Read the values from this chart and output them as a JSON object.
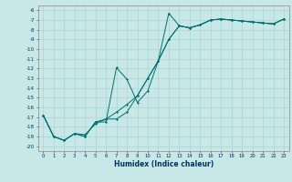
{
  "xlabel": "Humidex (Indice chaleur)",
  "xlim": [
    -0.5,
    23.5
  ],
  "ylim": [
    -20.5,
    -5.5
  ],
  "yticks": [
    -20,
    -19,
    -18,
    -17,
    -16,
    -15,
    -14,
    -13,
    -12,
    -11,
    -10,
    -9,
    -8,
    -7,
    -6
  ],
  "xticks": [
    0,
    1,
    2,
    3,
    4,
    5,
    6,
    7,
    8,
    9,
    10,
    11,
    12,
    13,
    14,
    15,
    16,
    17,
    18,
    19,
    20,
    21,
    22,
    23
  ],
  "bg_color": "#c8e8e8",
  "line_color": "#007070",
  "grid_color": "#b0d8d8",
  "line1_x": [
    0,
    1,
    2,
    3,
    4,
    5,
    6,
    7,
    8,
    9,
    10,
    11,
    12,
    13,
    14,
    15,
    16,
    17,
    18,
    19,
    20,
    21,
    22,
    23
  ],
  "line1_y": [
    -16.8,
    -19.0,
    -19.4,
    -18.7,
    -19.0,
    -17.5,
    -17.5,
    -11.9,
    -13.1,
    -15.5,
    -14.3,
    -11.2,
    -6.3,
    -7.6,
    -7.8,
    -7.5,
    -7.0,
    -6.9,
    -7.0,
    -7.1,
    -7.2,
    -7.3,
    -7.4,
    -6.9
  ],
  "line2_x": [
    0,
    1,
    2,
    3,
    4,
    5,
    6,
    7,
    8,
    9,
    10,
    11,
    12,
    13,
    14,
    15,
    16,
    17,
    18,
    19,
    20,
    21,
    22,
    23
  ],
  "line2_y": [
    -16.8,
    -19.0,
    -19.4,
    -18.7,
    -19.0,
    -17.5,
    -17.2,
    -17.2,
    -16.5,
    -14.8,
    -13.0,
    -11.2,
    -9.0,
    -7.6,
    -7.8,
    -7.5,
    -7.0,
    -6.9,
    -7.0,
    -7.1,
    -7.2,
    -7.3,
    -7.4,
    -6.9
  ],
  "line3_x": [
    0,
    1,
    2,
    3,
    4,
    5,
    6,
    7,
    8,
    9,
    10,
    11,
    12,
    13,
    14,
    15,
    16,
    17,
    18,
    19,
    20,
    21,
    22,
    23
  ],
  "line3_y": [
    -16.8,
    -19.0,
    -19.4,
    -18.7,
    -18.8,
    -17.7,
    -17.2,
    -16.5,
    -15.7,
    -14.8,
    -13.0,
    -11.2,
    -9.0,
    -7.6,
    -7.8,
    -7.5,
    -7.0,
    -6.9,
    -7.0,
    -7.1,
    -7.2,
    -7.3,
    -7.4,
    -6.9
  ]
}
